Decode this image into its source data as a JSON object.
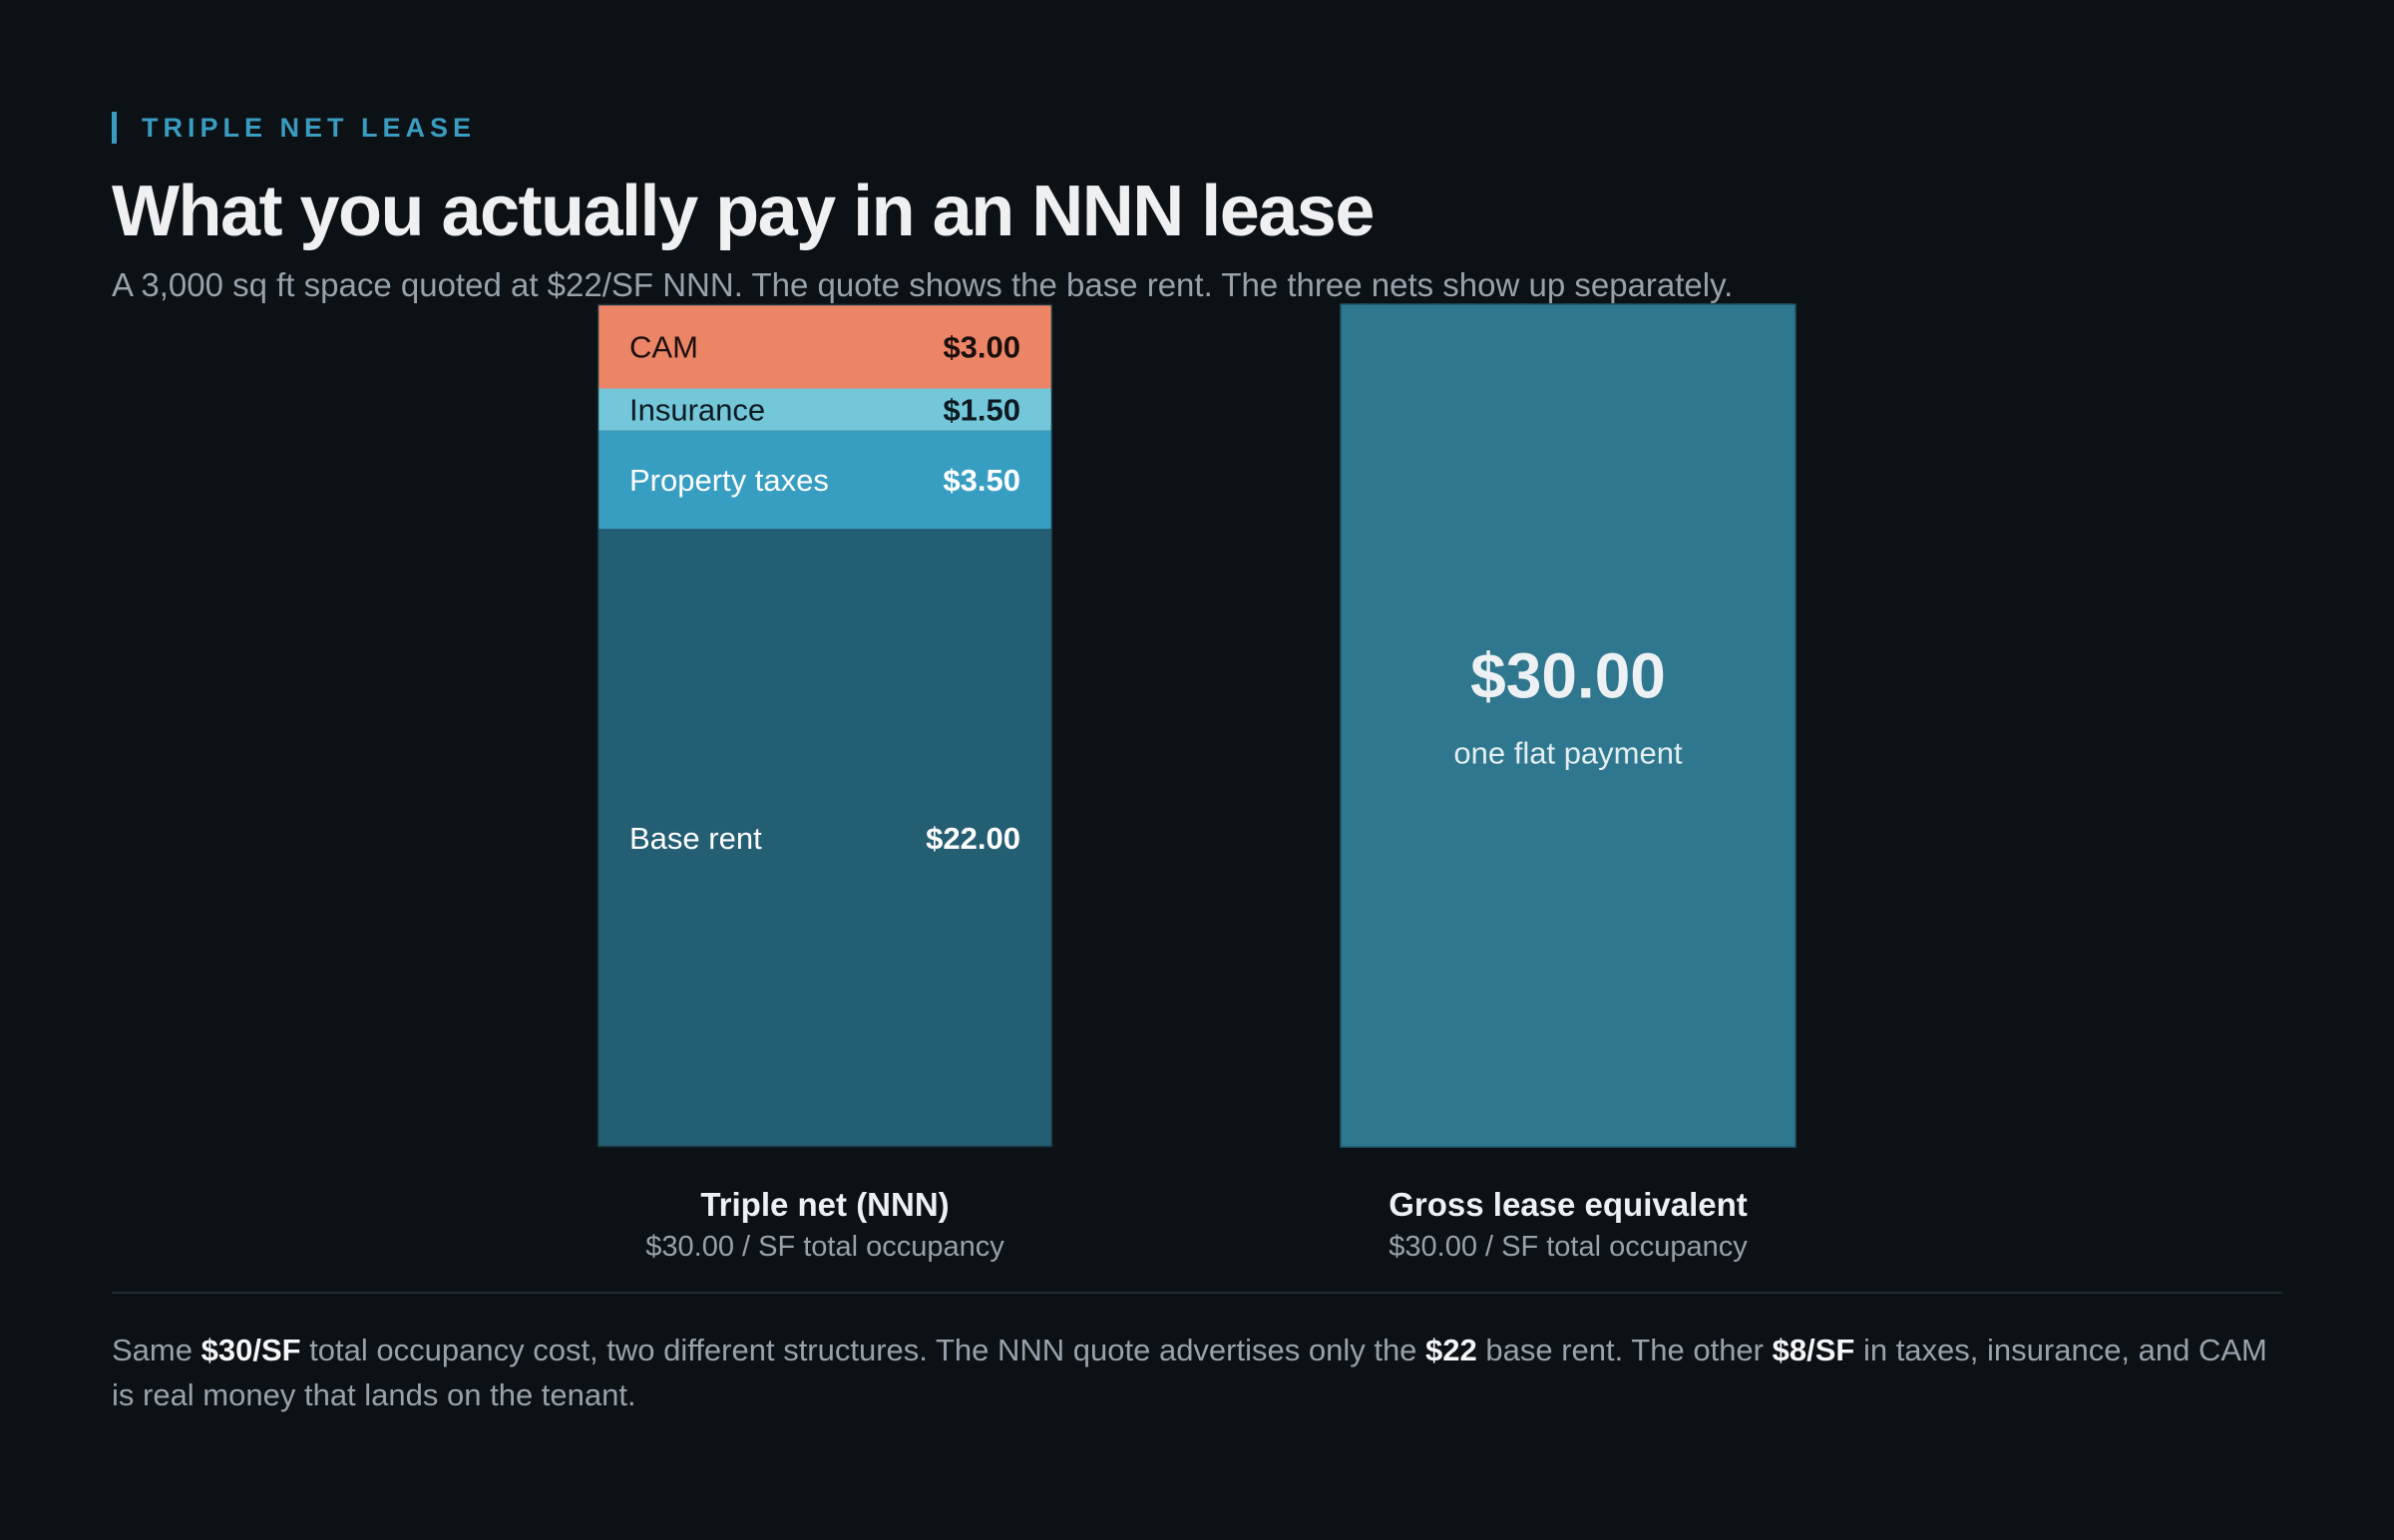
{
  "header": {
    "eyebrow": "TRIPLE NET LEASE",
    "title": "What you actually pay in an NNN lease",
    "subtitle": "A 3,000 sq ft space quoted at $22/SF NNN. The quote shows the base rent. The three nets show up separately."
  },
  "colors": {
    "background": "#0c1115",
    "accent": "#3a9cc0",
    "cam": "#ec8566",
    "insurance": "#74c6d9",
    "property_taxes": "#379ec2",
    "base_rent": "#245e73",
    "gross": "#2f778e"
  },
  "chart_data": {
    "type": "bar",
    "stacked": true,
    "unit": "$/SF",
    "ylim": [
      0,
      30
    ],
    "grid": false,
    "legend": "none",
    "categories": [
      "Triple net (NNN)",
      "Gross lease equivalent"
    ],
    "category_subtitles": [
      "$30.00 / SF total occupancy",
      "$30.00 / SF total occupancy"
    ],
    "nnn_segments": [
      {
        "name": "Base rent",
        "value": 22.0,
        "label": "$22.00",
        "color": "#245e73",
        "text_color": "#ffffff"
      },
      {
        "name": "Property taxes",
        "value": 3.5,
        "label": "$3.50",
        "color": "#379ec2",
        "text_color": "#ffffff"
      },
      {
        "name": "Insurance",
        "value": 1.5,
        "label": "$1.50",
        "color": "#74c6d9",
        "text_color": "#0c1a22"
      },
      {
        "name": "CAM",
        "value": 3.0,
        "label": "$3.00",
        "color": "#ec8566",
        "text_color": "#1a0f0b"
      }
    ],
    "gross": {
      "value": 30.0,
      "label": "$30.00",
      "sublabel": "one flat payment",
      "color": "#2f778e"
    }
  },
  "footnote": {
    "t1": "Same ",
    "b1": "$30/SF",
    "t2": " total occupancy cost, two different structures. The NNN quote advertises only the ",
    "b2": "$22",
    "t3": " base rent. The other ",
    "b3": "$8/SF",
    "t4": " in taxes, insurance, and CAM is real money that lands on the tenant."
  }
}
